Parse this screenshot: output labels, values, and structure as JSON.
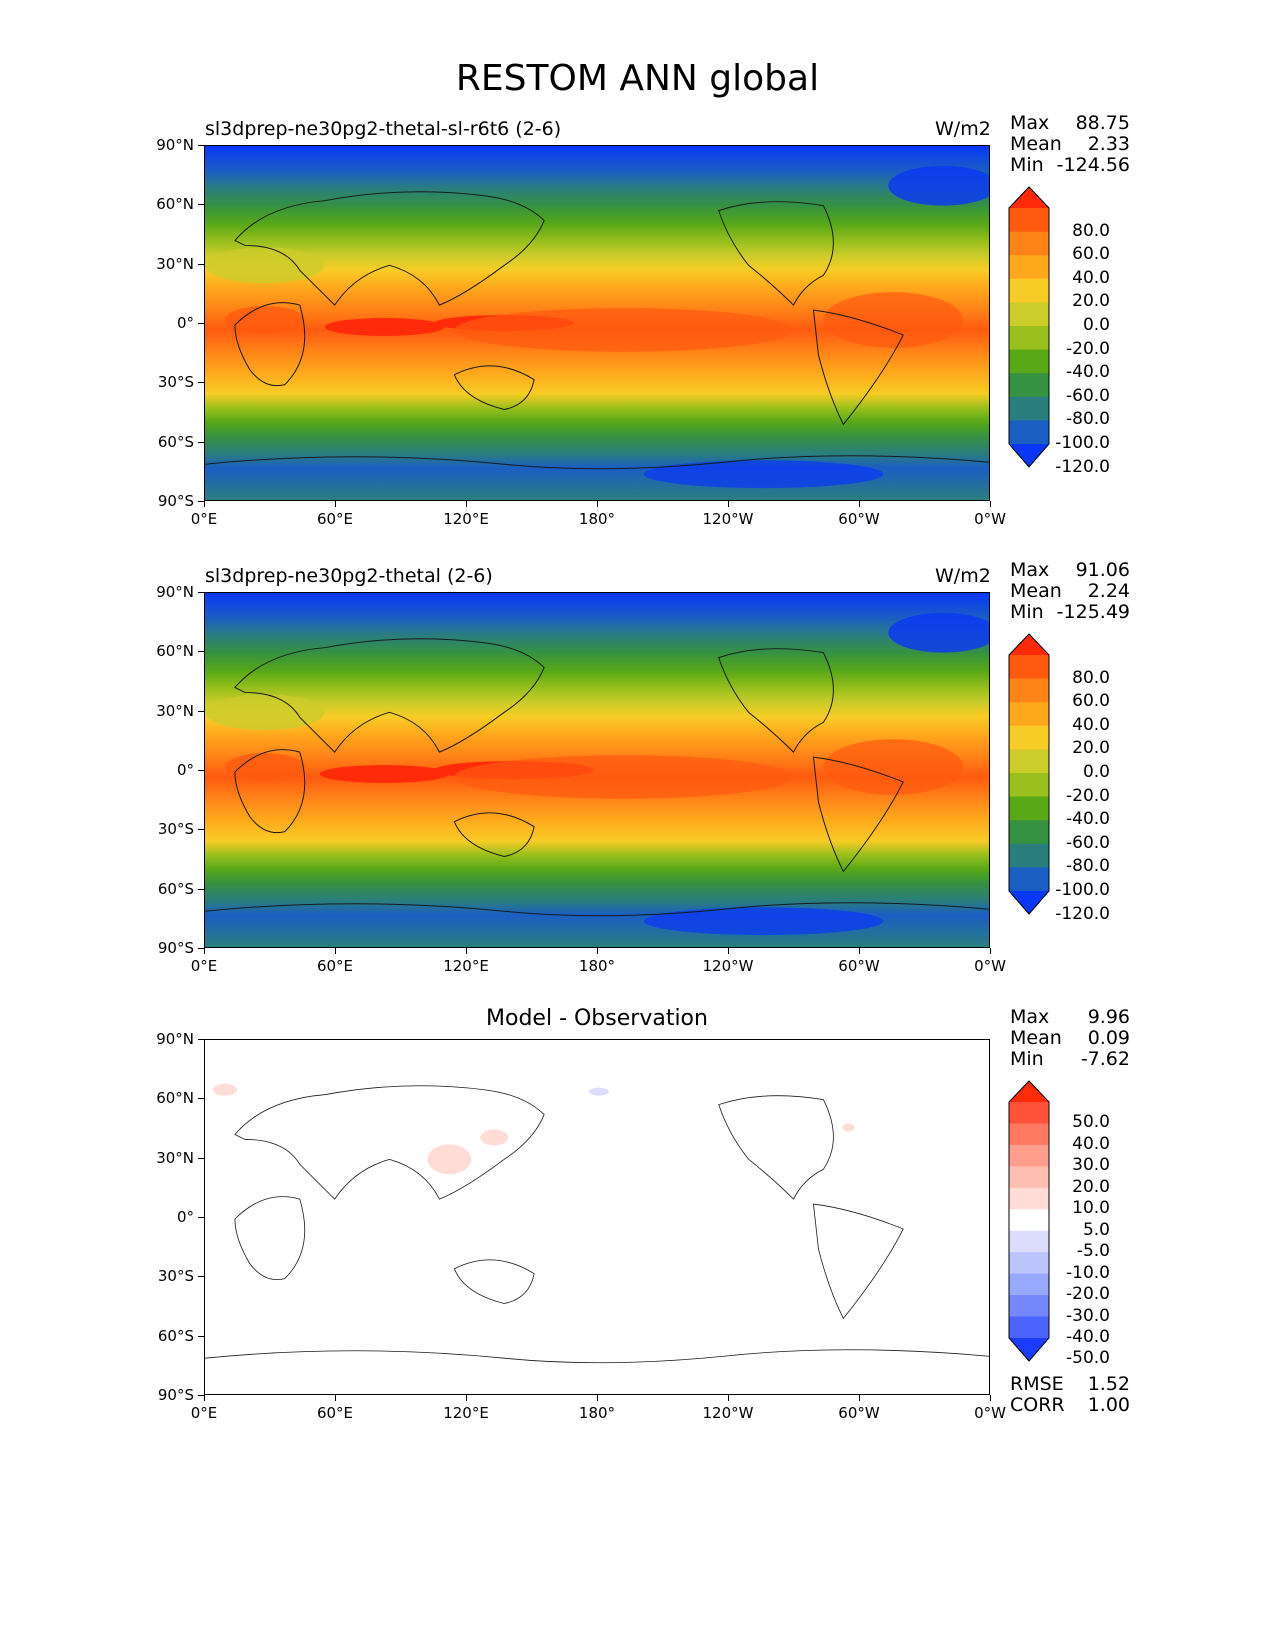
{
  "figure": {
    "title": "RESTOM ANN global"
  },
  "axes": {
    "lat_ticks": [
      "90°N",
      "60°N",
      "30°N",
      "0°",
      "30°S",
      "60°S",
      "90°S"
    ],
    "lon_ticks": [
      "0°E",
      "60°E",
      "120°E",
      "180°",
      "120°W",
      "60°W",
      "0°W"
    ]
  },
  "panels": [
    {
      "title": "sl3dprep-ne30pg2-thetal-sl-r6t6 (2-6)",
      "units": "W/m2",
      "stats": {
        "max_label": "Max",
        "max": "88.75",
        "mean_label": "Mean",
        "mean": "2.33",
        "min_label": "Min",
        "min": "-124.56"
      }
    },
    {
      "title": "sl3dprep-ne30pg2-thetal (2-6)",
      "units": "W/m2",
      "stats": {
        "max_label": "Max",
        "max": "91.06",
        "mean_label": "Mean",
        "mean": "2.24",
        "min_label": "Min",
        "min": "-125.49"
      }
    },
    {
      "title": "Model - Observation",
      "units": "",
      "stats": {
        "max_label": "Max",
        "max": "9.96",
        "mean_label": "Mean",
        "mean": "0.09",
        "min_label": "Min",
        "min": "-7.62"
      },
      "metrics": {
        "rmse_label": "RMSE",
        "rmse": "1.52",
        "corr_label": "CORR",
        "corr": "1.00"
      }
    }
  ],
  "colorbars": {
    "field": {
      "levels": [
        "80.0",
        "60.0",
        "40.0",
        "20.0",
        "0.0",
        "-20.0",
        "-40.0",
        "-60.0",
        "-80.0",
        "-100.0",
        "-120.0"
      ],
      "colors_top_to_bottom": [
        "#ff2a0a",
        "#ff5a10",
        "#ff8418",
        "#ffa81c",
        "#f8cc26",
        "#cccc2a",
        "#99c01c",
        "#58a818",
        "#359240",
        "#2a7e7e",
        "#1a5ec4",
        "#0a36f8"
      ]
    },
    "diff": {
      "levels": [
        "50.0",
        "40.0",
        "30.0",
        "20.0",
        "10.0",
        "5.0",
        "-5.0",
        "-10.0",
        "-20.0",
        "-30.0",
        "-40.0",
        "-50.0"
      ],
      "colors_top_to_bottom": [
        "#ff2c0a",
        "#ff5238",
        "#ff7a60",
        "#ff9e8a",
        "#ffbeb0",
        "#ffdcd6",
        "#fefefe",
        "#dcdcfc",
        "#bcc4fc",
        "#98a8fc",
        "#7488fc",
        "#4a64fc",
        "#1c3cfc"
      ]
    }
  },
  "chart_data": {
    "type": "heatmap",
    "variable": "RESTOM",
    "season": "ANN",
    "region": "global",
    "units": "W/m2",
    "lon_range": [
      0,
      360
    ],
    "lat_range": [
      -90,
      90
    ],
    "panels": [
      {
        "name": "sl3dprep-ne30pg2-thetal-sl-r6t6 (2-6)",
        "max": 88.75,
        "mean": 2.33,
        "min": -124.56,
        "contour_levels": [
          -120,
          -100,
          -80,
          -60,
          -40,
          -20,
          0,
          20,
          40,
          60,
          80
        ]
      },
      {
        "name": "sl3dprep-ne30pg2-thetal (2-6)",
        "max": 91.06,
        "mean": 2.24,
        "min": -125.49,
        "contour_levels": [
          -120,
          -100,
          -80,
          -60,
          -40,
          -20,
          0,
          20,
          40,
          60,
          80
        ]
      },
      {
        "name": "Model - Observation",
        "max": 9.96,
        "mean": 0.09,
        "min": -7.62,
        "rmse": 1.52,
        "corr": 1.0,
        "contour_levels": [
          -50,
          -40,
          -30,
          -20,
          -10,
          -5,
          5,
          10,
          20,
          30,
          40,
          50
        ]
      }
    ]
  }
}
